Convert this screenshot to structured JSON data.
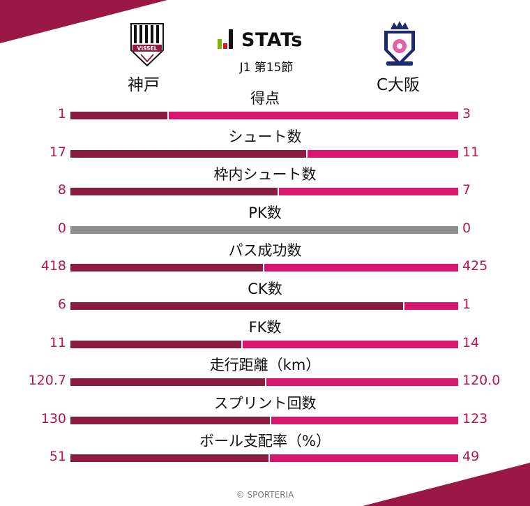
{
  "colors": {
    "home": "#8b1c3f",
    "away": "#d8166e",
    "neutral": "#8d8d8d",
    "accent": "#9a1746"
  },
  "brand": {
    "text": "STATs",
    "round": "J1 第15節"
  },
  "teams": {
    "home": {
      "name": "神戸",
      "logo_text": "VISSEL"
    },
    "away": {
      "name": "C大阪"
    }
  },
  "chart_data": {
    "type": "bar",
    "categories": [
      "得点",
      "シュート数",
      "枠内シュート数",
      "PK数",
      "パス成功数",
      "CK数",
      "FK数",
      "走行距離（km）",
      "スプリント回数",
      "ボール支配率（%）"
    ],
    "series": [
      {
        "name": "神戸",
        "values": [
          "1",
          "17",
          "8",
          "0",
          "418",
          "6",
          "11",
          "120.7",
          "130",
          "51"
        ]
      },
      {
        "name": "C大阪",
        "values": [
          "3",
          "11",
          "7",
          "0",
          "425",
          "1",
          "14",
          "120.0",
          "123",
          "49"
        ]
      }
    ]
  },
  "footer": {
    "credit": "© SPORTERIA"
  }
}
